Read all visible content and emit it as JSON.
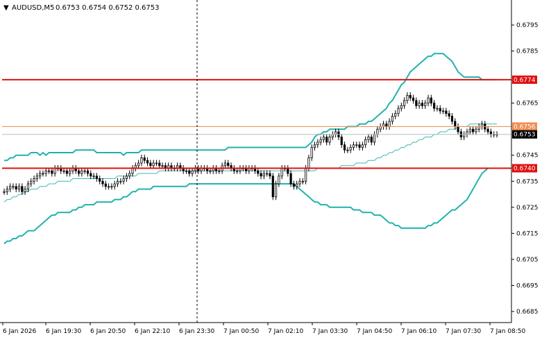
{
  "header": {
    "arrow": "▼",
    "symbol_tf": "AUDUSD,M5",
    "ohlc": "0.6753 0.6754 0.6752 0.6753"
  },
  "colors": {
    "background": "#ffffff",
    "axis": "#000000",
    "bollinger": "#20b2aa",
    "ma_line": "#3cb8b2",
    "candles": "#000000",
    "level_red": "#e01010",
    "level_orange": "#f08c50",
    "current_badge_bg": "#000000",
    "level_badge_bg": "#e01010",
    "orange_badge_bg": "#f08c50"
  },
  "chart_data": {
    "type": "candlestick",
    "symbol": "AUDUSD",
    "timeframe": "M5",
    "ylim": [
      0.6681,
      0.6803
    ],
    "y_ticks": [
      "0.6795",
      "0.6785",
      "0.6765",
      "0.6745",
      "0.6735",
      "0.6725",
      "0.6715",
      "0.6705",
      "0.6695",
      "0.6685"
    ],
    "x_ticks": [
      "6 Jan 2026",
      "6 Jan 19:30",
      "6 Jan 20:50",
      "6 Jan 22:10",
      "6 Jan 23:30",
      "7 Jan 00:50",
      "7 Jan 02:10",
      "7 Jan 03:30",
      "7 Jan 04:50",
      "7 Jan 06:10",
      "7 Jan 07:30",
      "7 Jan 08:50"
    ],
    "levels": [
      {
        "value": 0.6774,
        "label": "0.6774",
        "style": "red"
      },
      {
        "value": 0.6756,
        "label": "0.6756",
        "style": "orange"
      },
      {
        "value": 0.674,
        "label": "0.6740",
        "style": "red"
      }
    ],
    "current_price": {
      "value": 0.6753,
      "label": "0.6753"
    },
    "vline_session_tick": "6 Jan 23:30",
    "closes": [
      0.6731,
      0.6732,
      0.6733,
      0.6733,
      0.6732,
      0.6733,
      0.6731,
      0.6732,
      0.6734,
      0.6735,
      0.6736,
      0.6737,
      0.6738,
      0.6738,
      0.6739,
      0.6739,
      0.6738,
      0.674,
      0.674,
      0.6739,
      0.6739,
      0.6738,
      0.6739,
      0.674,
      0.6739,
      0.6738,
      0.6739,
      0.6739,
      0.6738,
      0.6737,
      0.6737,
      0.6736,
      0.6735,
      0.6734,
      0.6733,
      0.6733,
      0.6733,
      0.6734,
      0.6735,
      0.6735,
      0.6736,
      0.6737,
      0.6738,
      0.674,
      0.6741,
      0.6742,
      0.6744,
      0.6743,
      0.6742,
      0.6741,
      0.6742,
      0.6742,
      0.6741,
      0.6741,
      0.674,
      0.6741,
      0.674,
      0.674,
      0.6741,
      0.674,
      0.6739,
      0.6739,
      0.6738,
      0.6739,
      0.674,
      0.6739,
      0.674,
      0.674,
      0.6739,
      0.6739,
      0.674,
      0.6739,
      0.6739,
      0.6741,
      0.6742,
      0.6741,
      0.674,
      0.6739,
      0.6739,
      0.674,
      0.674,
      0.6739,
      0.674,
      0.674,
      0.6739,
      0.6738,
      0.6737,
      0.6738,
      0.6738,
      0.6737,
      0.6729,
      0.6734,
      0.6737,
      0.674,
      0.674,
      0.6738,
      0.6734,
      0.6733,
      0.6734,
      0.6735,
      0.6735,
      0.674,
      0.6744,
      0.6748,
      0.6749,
      0.675,
      0.6751,
      0.6752,
      0.675,
      0.6752,
      0.6753,
      0.6754,
      0.6752,
      0.6749,
      0.6747,
      0.6747,
      0.6748,
      0.6749,
      0.6749,
      0.6748,
      0.6749,
      0.6751,
      0.6752,
      0.675,
      0.6753,
      0.6755,
      0.6756,
      0.6757,
      0.6756,
      0.6758,
      0.676,
      0.6761,
      0.6763,
      0.6764,
      0.6766,
      0.6768,
      0.6767,
      0.6766,
      0.6764,
      0.6765,
      0.6764,
      0.6765,
      0.6767,
      0.6765,
      0.6763,
      0.6763,
      0.6762,
      0.6762,
      0.6761,
      0.676,
      0.6758,
      0.6756,
      0.6754,
      0.6752,
      0.6753,
      0.6754,
      0.6755,
      0.6754,
      0.6755,
      0.6756,
      0.6757,
      0.6755,
      0.6754,
      0.6753,
      0.6753,
      0.6753
    ],
    "bollinger_upper": [
      0.6743,
      0.6743,
      0.6744,
      0.6744,
      0.6745,
      0.6745,
      0.6745,
      0.6745,
      0.6745,
      0.6746,
      0.6746,
      0.6746,
      0.6745,
      0.6746,
      0.6745,
      0.6746,
      0.6746,
      0.6746,
      0.6746,
      0.6746,
      0.6746,
      0.6746,
      0.6746,
      0.6746,
      0.6747,
      0.6747,
      0.6747,
      0.6747,
      0.6747,
      0.6747,
      0.6747,
      0.6746,
      0.6746,
      0.6746,
      0.6746,
      0.6746,
      0.6746,
      0.6746,
      0.6746,
      0.6746,
      0.6745,
      0.6746,
      0.6746,
      0.6746,
      0.6746,
      0.6746,
      0.6747,
      0.6747,
      0.6747,
      0.6747,
      0.6747,
      0.6747,
      0.6747,
      0.6747,
      0.6747,
      0.6747,
      0.6747,
      0.6747,
      0.6747,
      0.6747,
      0.6747,
      0.6747,
      0.6747,
      0.6747,
      0.6747,
      0.6747,
      0.6747,
      0.6747,
      0.6747,
      0.6747,
      0.6747,
      0.6747,
      0.6747,
      0.6747,
      0.6747,
      0.6748,
      0.6748,
      0.6748,
      0.6748,
      0.6748,
      0.6748,
      0.6748,
      0.6748,
      0.6748,
      0.6748,
      0.6748,
      0.6748,
      0.6748,
      0.6748,
      0.6748,
      0.6748,
      0.6748,
      0.6748,
      0.6748,
      0.6748,
      0.6748,
      0.6748,
      0.6748,
      0.6748,
      0.6748,
      0.6748,
      0.6748,
      0.6749,
      0.675,
      0.6752,
      0.6753,
      0.6753,
      0.6754,
      0.6754,
      0.6755,
      0.6755,
      0.6755,
      0.6755,
      0.6755,
      0.6755,
      0.6756,
      0.6756,
      0.6756,
      0.6756,
      0.6757,
      0.6757,
      0.6757,
      0.6758,
      0.6758,
      0.6759,
      0.676,
      0.6761,
      0.6762,
      0.6763,
      0.6765,
      0.6766,
      0.6768,
      0.677,
      0.6772,
      0.6773,
      0.6775,
      0.6777,
      0.6778,
      0.6779,
      0.678,
      0.6781,
      0.6782,
      0.6783,
      0.6783,
      0.6784,
      0.6784,
      0.6784,
      0.6784,
      0.6783,
      0.6782,
      0.6781,
      0.6779,
      0.6777,
      0.6776,
      0.6775,
      0.6775,
      0.6775,
      0.6775,
      0.6775,
      0.6775,
      0.6774,
      0.6774,
      0.6774,
      0.6774,
      0.6774,
      0.6774
    ],
    "bollinger_middle": [
      0.6727,
      0.6728,
      0.6728,
      0.6729,
      0.6729,
      0.673,
      0.673,
      0.6731,
      0.6731,
      0.6732,
      0.6732,
      0.6732,
      0.6733,
      0.6733,
      0.6733,
      0.6734,
      0.6734,
      0.6734,
      0.6735,
      0.6735,
      0.6735,
      0.6735,
      0.6735,
      0.6736,
      0.6736,
      0.6736,
      0.6736,
      0.6736,
      0.6736,
      0.6736,
      0.6736,
      0.6736,
      0.6736,
      0.6736,
      0.6736,
      0.6736,
      0.6736,
      0.6736,
      0.6737,
      0.6737,
      0.6737,
      0.6737,
      0.6737,
      0.6737,
      0.6737,
      0.6738,
      0.6738,
      0.6738,
      0.6738,
      0.6738,
      0.6738,
      0.6738,
      0.6739,
      0.6739,
      0.6739,
      0.6739,
      0.6739,
      0.6739,
      0.6739,
      0.6739,
      0.6739,
      0.6739,
      0.6739,
      0.6739,
      0.6739,
      0.6739,
      0.6739,
      0.6739,
      0.6739,
      0.6739,
      0.6739,
      0.6739,
      0.6739,
      0.6739,
      0.6739,
      0.6739,
      0.6739,
      0.6739,
      0.6739,
      0.6739,
      0.6739,
      0.6739,
      0.6739,
      0.6739,
      0.6739,
      0.6739,
      0.6739,
      0.6739,
      0.6739,
      0.6739,
      0.6739,
      0.6739,
      0.6739,
      0.6739,
      0.6739,
      0.6739,
      0.6739,
      0.6739,
      0.6739,
      0.6739,
      0.6739,
      0.6739,
      0.6739,
      0.6739,
      0.6739,
      0.674,
      0.674,
      0.674,
      0.674,
      0.674,
      0.674,
      0.674,
      0.674,
      0.6741,
      0.6741,
      0.6741,
      0.6741,
      0.6741,
      0.6742,
      0.6742,
      0.6742,
      0.6742,
      0.6743,
      0.6743,
      0.6743,
      0.6744,
      0.6744,
      0.6745,
      0.6745,
      0.6746,
      0.6746,
      0.6747,
      0.6747,
      0.6748,
      0.6748,
      0.6749,
      0.6749,
      0.675,
      0.675,
      0.6751,
      0.6751,
      0.6752,
      0.6752,
      0.6752,
      0.6753,
      0.6753,
      0.6754,
      0.6754,
      0.6754,
      0.6755,
      0.6755,
      0.6755,
      0.6756,
      0.6756,
      0.6756,
      0.6756,
      0.6757,
      0.6757,
      0.6757,
      0.6757,
      0.6757,
      0.6757,
      0.6757,
      0.6757,
      0.6757,
      0.6757
    ],
    "bollinger_lower": [
      0.6711,
      0.6712,
      0.6712,
      0.6713,
      0.6713,
      0.6714,
      0.6714,
      0.6715,
      0.6716,
      0.6716,
      0.6716,
      0.6717,
      0.6718,
      0.6719,
      0.672,
      0.6721,
      0.6722,
      0.6722,
      0.6723,
      0.6723,
      0.6723,
      0.6723,
      0.6723,
      0.6724,
      0.6724,
      0.6725,
      0.6725,
      0.6726,
      0.6726,
      0.6726,
      0.6726,
      0.6727,
      0.6727,
      0.6727,
      0.6727,
      0.6727,
      0.6727,
      0.6728,
      0.6728,
      0.6728,
      0.6729,
      0.6729,
      0.673,
      0.6731,
      0.6731,
      0.6732,
      0.6732,
      0.6732,
      0.6732,
      0.6732,
      0.6733,
      0.6733,
      0.6733,
      0.6733,
      0.6733,
      0.6733,
      0.6733,
      0.6733,
      0.6733,
      0.6733,
      0.6733,
      0.6733,
      0.6734,
      0.6734,
      0.6734,
      0.6734,
      0.6734,
      0.6734,
      0.6734,
      0.6734,
      0.6734,
      0.6734,
      0.6734,
      0.6734,
      0.6734,
      0.6734,
      0.6734,
      0.6734,
      0.6734,
      0.6734,
      0.6734,
      0.6734,
      0.6734,
      0.6734,
      0.6734,
      0.6734,
      0.6734,
      0.6734,
      0.6734,
      0.6734,
      0.6734,
      0.6734,
      0.6734,
      0.6734,
      0.6734,
      0.6734,
      0.6734,
      0.6734,
      0.6733,
      0.6732,
      0.6731,
      0.673,
      0.6729,
      0.6728,
      0.6727,
      0.6727,
      0.6726,
      0.6726,
      0.6726,
      0.6725,
      0.6725,
      0.6725,
      0.6725,
      0.6725,
      0.6725,
      0.6725,
      0.6725,
      0.6724,
      0.6724,
      0.6724,
      0.6723,
      0.6723,
      0.6723,
      0.6723,
      0.6722,
      0.6722,
      0.6722,
      0.6721,
      0.672,
      0.6719,
      0.6719,
      0.6718,
      0.6718,
      0.6717,
      0.6717,
      0.6717,
      0.6717,
      0.6717,
      0.6717,
      0.6717,
      0.6717,
      0.6717,
      0.6718,
      0.6718,
      0.6719,
      0.6719,
      0.672,
      0.6721,
      0.6722,
      0.6723,
      0.6724,
      0.6724,
      0.6725,
      0.6726,
      0.6727,
      0.6728,
      0.673,
      0.6732,
      0.6734,
      0.6736,
      0.6738,
      0.6739,
      0.674,
      0.674,
      0.674,
      0.674
    ]
  }
}
